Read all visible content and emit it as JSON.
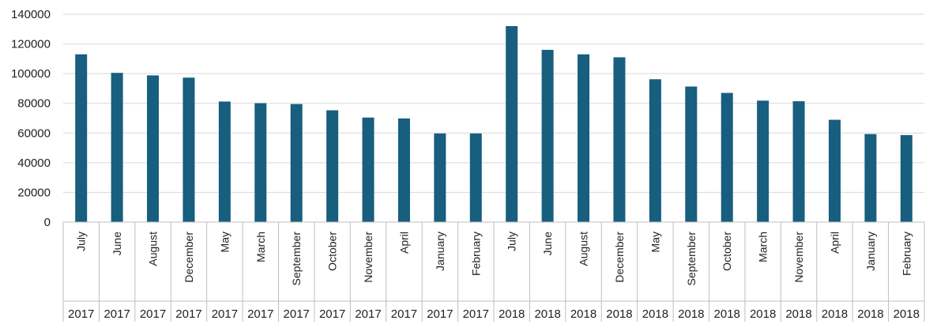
{
  "chart_data": {
    "type": "bar",
    "title": "",
    "xlabel": "",
    "ylabel": "",
    "ylim": [
      0,
      140000
    ],
    "yticks": [
      0,
      20000,
      40000,
      60000,
      80000,
      100000,
      120000,
      140000
    ],
    "ytick_labels": [
      "0",
      "20000",
      "40000",
      "60000",
      "80000",
      "100000",
      "120000",
      "140000"
    ],
    "grid": "horizontal",
    "legend": "none",
    "bar_color": "#175E7F",
    "categories": [
      {
        "month": "July",
        "year": "2017"
      },
      {
        "month": "June",
        "year": "2017"
      },
      {
        "month": "August",
        "year": "2017"
      },
      {
        "month": "December",
        "year": "2017"
      },
      {
        "month": "May",
        "year": "2017"
      },
      {
        "month": "March",
        "year": "2017"
      },
      {
        "month": "September",
        "year": "2017"
      },
      {
        "month": "October",
        "year": "2017"
      },
      {
        "month": "November",
        "year": "2017"
      },
      {
        "month": "April",
        "year": "2017"
      },
      {
        "month": "January",
        "year": "2017"
      },
      {
        "month": "February",
        "year": "2017"
      },
      {
        "month": "July",
        "year": "2018"
      },
      {
        "month": "June",
        "year": "2018"
      },
      {
        "month": "August",
        "year": "2018"
      },
      {
        "month": "December",
        "year": "2018"
      },
      {
        "month": "May",
        "year": "2018"
      },
      {
        "month": "September",
        "year": "2018"
      },
      {
        "month": "October",
        "year": "2018"
      },
      {
        "month": "March",
        "year": "2018"
      },
      {
        "month": "November",
        "year": "2018"
      },
      {
        "month": "April",
        "year": "2018"
      },
      {
        "month": "January",
        "year": "2018"
      },
      {
        "month": "February",
        "year": "2018"
      }
    ],
    "values": [
      113000,
      100500,
      98800,
      97300,
      81200,
      80100,
      79500,
      75300,
      70400,
      69800,
      59700,
      59700,
      132000,
      116000,
      113000,
      111000,
      96200,
      91300,
      87000,
      81800,
      81400,
      68900,
      59300,
      58600
    ]
  }
}
